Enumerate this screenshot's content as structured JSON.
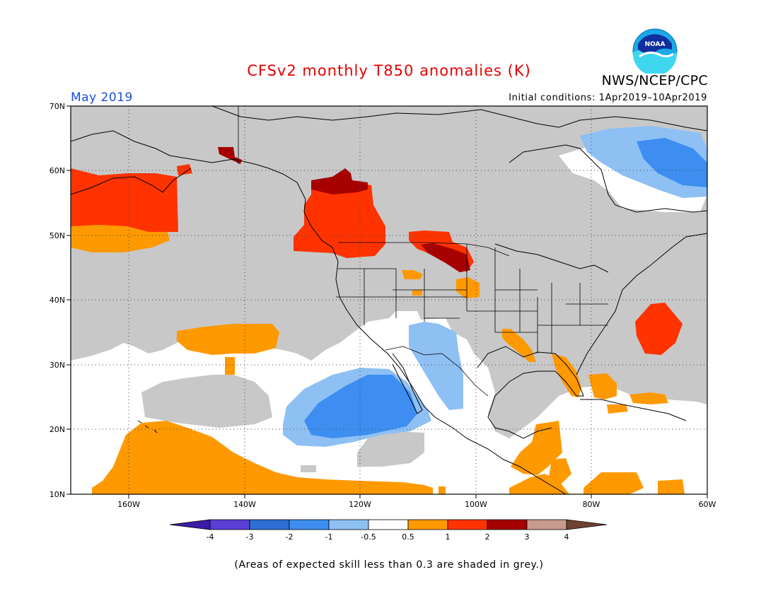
{
  "title": "CFSv2 monthly T850 anomalies (K)",
  "agency": "NWS/NCEP/CPC",
  "logo_text": "NOAA",
  "valid_month": "May 2019",
  "initial_conditions": "Initial conditions: 1Apr2019–10Apr2019",
  "footnote": "(Areas of expected skill less than 0.3 are shaded in grey.)",
  "colors": {
    "title": "#e60000",
    "month": "#1a4fdc",
    "skill_grey": "#c8c8c8",
    "land_outline": "#000000"
  },
  "map": {
    "lat_labels": [
      "70N",
      "60N",
      "50N",
      "40N",
      "30N",
      "20N",
      "10N"
    ],
    "lon_labels": [
      "160W",
      "140W",
      "120W",
      "100W",
      "80W",
      "60W"
    ],
    "extent": {
      "lon_min": -170,
      "lon_max": -60,
      "lat_min": 10,
      "lat_max": 70
    },
    "anomaly_regions": [
      {
        "name": "Gulf of Alaska / NE Pacific warm",
        "value": "1 to 2 K"
      },
      {
        "name": "British Columbia / Pacific NW warm",
        "value": "1 to 2 K"
      },
      {
        "name": "Yukon / BC interior",
        "value": "2 to 3 K"
      },
      {
        "name": "Northern Plains warm",
        "value": "1 to 2 K"
      },
      {
        "name": "Western Atlantic warm core",
        "value": "1 to 2 K"
      },
      {
        "name": "Eastern Pacific off Baja cool",
        "value": "-2 to -1 K"
      },
      {
        "name": "Northern Quebec / Labrador cool",
        "value": "-1 to -0.5 K"
      },
      {
        "name": "Central Pacific near Hawaii warm",
        "value": "0.5 to 1 K"
      }
    ]
  },
  "colorbar": {
    "labels": [
      "-4",
      "-3",
      "-2",
      "-1",
      "-0.5",
      "0.5",
      "1",
      "2",
      "3",
      "4"
    ],
    "colors": [
      "#3a1ca8",
      "#5a3ed6",
      "#2d6fd4",
      "#3d8ef0",
      "#8ec0f4",
      "#ffffff",
      "#ff9900",
      "#ff3300",
      "#a60000",
      "#c79c8e",
      "#6e4233"
    ]
  }
}
